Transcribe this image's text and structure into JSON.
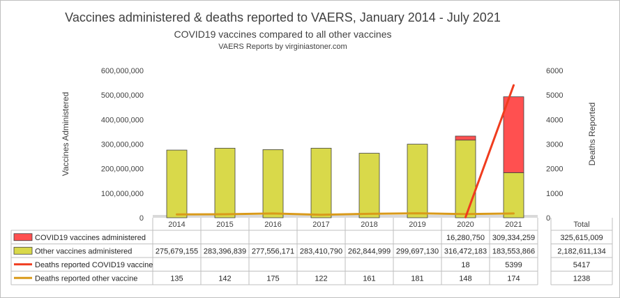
{
  "chart_data": {
    "type": "bar",
    "title": "Vaccines administered & deaths reported to VAERS, January 2014 - July 2021",
    "subtitle": "COVID19 vaccines compared to all other vaccines",
    "source": "VAERS  Reports by virginiastoner.com",
    "ylabel_left": "Vaccines Administered",
    "ylabel_right": "Deaths Reported",
    "ylim_left": [
      0,
      600000000
    ],
    "ylim_right": [
      0,
      6000
    ],
    "left_ticks": [
      "0",
      "100,000,000",
      "200,000,000",
      "300,000,000",
      "400,000,000",
      "500,000,000",
      "600,000,000"
    ],
    "right_ticks": [
      "0",
      "1000",
      "2000",
      "3000",
      "4000",
      "5000",
      "6000"
    ],
    "categories": [
      "2014",
      "2015",
      "2016",
      "2017",
      "2018",
      "2019",
      "2020",
      "2021"
    ],
    "total_header": "Total",
    "series": [
      {
        "name": "COVID19 vaccines administered",
        "kind": "stacked-bar",
        "color": "#ff5050",
        "values": [
          null,
          null,
          null,
          null,
          null,
          null,
          16280750,
          309334259
        ],
        "labels": [
          "",
          "",
          "",
          "",
          "",
          "",
          "16,280,750",
          "309,334,259"
        ],
        "total": "325,615,009"
      },
      {
        "name": "Other vaccines administered",
        "kind": "stacked-bar",
        "color": "#d9d94a",
        "values": [
          275679155,
          283396839,
          277556171,
          283410790,
          262844999,
          299697130,
          316472183,
          183553866
        ],
        "labels": [
          "275,679,155",
          "283,396,839",
          "277,556,171",
          "283,410,790",
          "262,844,999",
          "299,697,130",
          "316,472,183",
          "183,553,866"
        ],
        "total": "2,182,611,134"
      },
      {
        "name": "Deaths reported COVID19 vaccine",
        "kind": "line",
        "color": "#f03c1e",
        "values": [
          null,
          null,
          null,
          null,
          null,
          null,
          18,
          5399
        ],
        "labels": [
          "",
          "",
          "",
          "",
          "",
          "",
          "18",
          "5399"
        ],
        "total": "5417"
      },
      {
        "name": "Deaths reported other vaccine",
        "kind": "line",
        "color": "#d99a1a",
        "values": [
          135,
          142,
          175,
          122,
          161,
          181,
          148,
          174
        ],
        "labels": [
          "135",
          "142",
          "175",
          "122",
          "161",
          "181",
          "148",
          "174"
        ],
        "total": "1238"
      }
    ]
  }
}
